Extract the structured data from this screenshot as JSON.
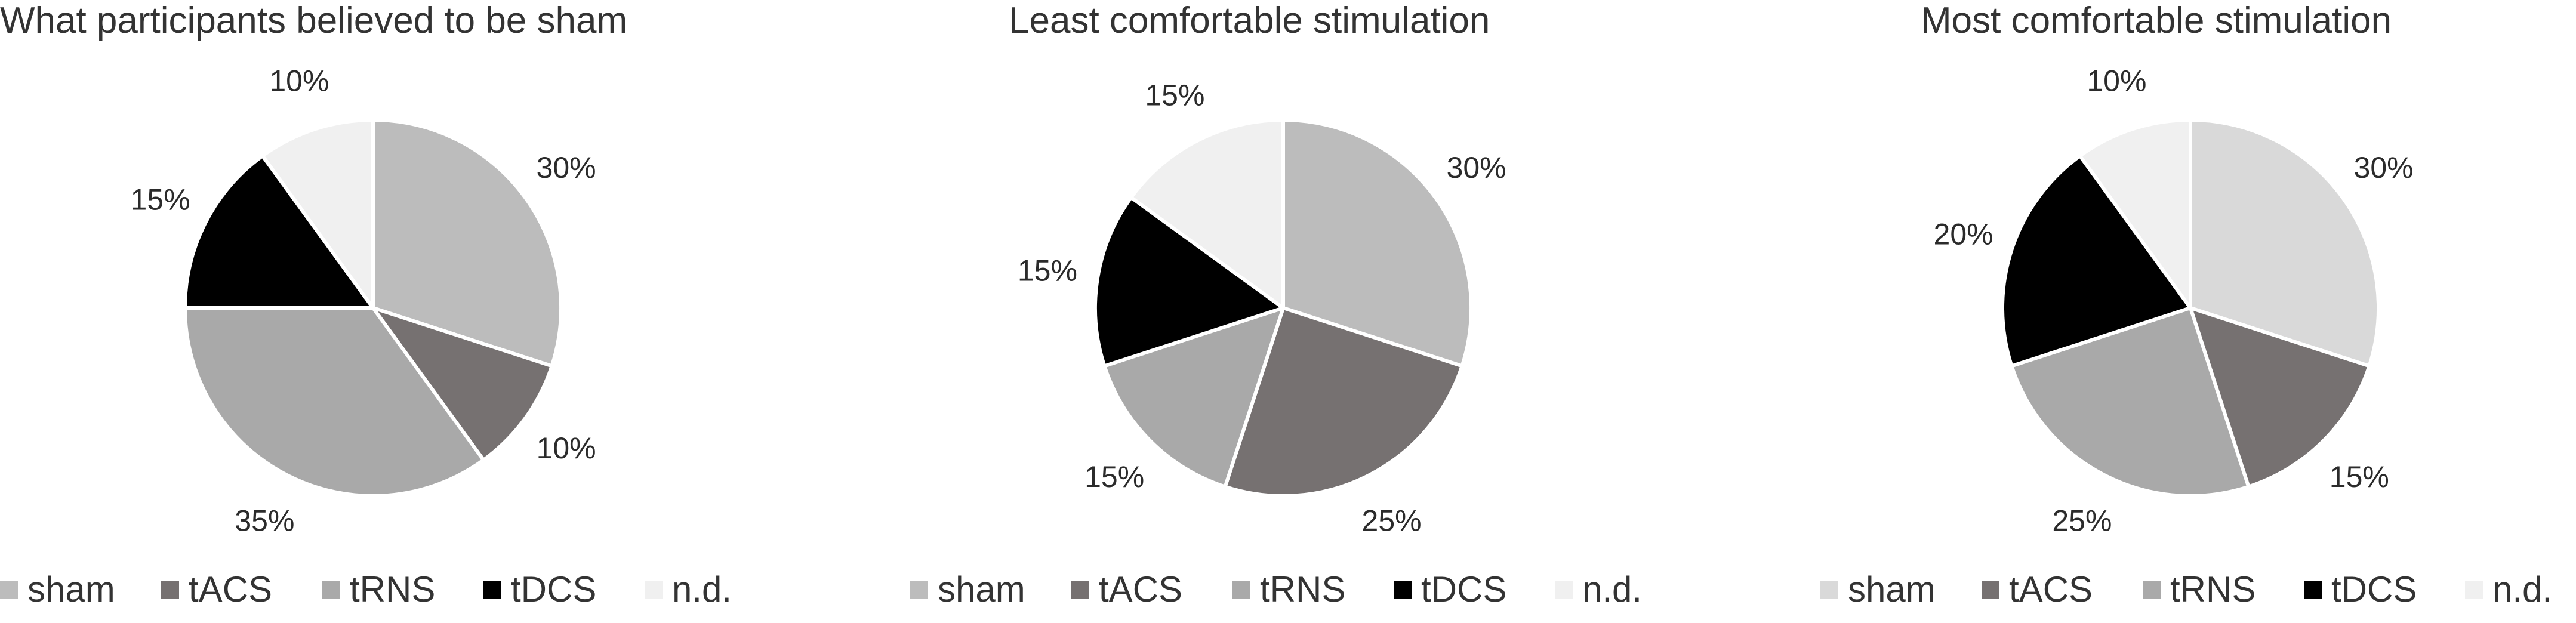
{
  "colors": {
    "sham": "#bcbcbc",
    "tACS": "#767171",
    "tRNS": "#a9a9a9",
    "tDCS": "#000000",
    "n.d.": "#f0f0f0",
    "slice_border": "#ffffff"
  },
  "chart_data": [
    {
      "type": "pie",
      "title": "What participants believed to be sham",
      "categories": [
        "sham",
        "tACS",
        "tRNS",
        "tDCS",
        "n.d."
      ],
      "values": [
        30,
        10,
        35,
        15,
        10
      ],
      "labels": [
        "30%",
        "10%",
        "35%",
        "15%",
        "10%"
      ],
      "legend": [
        "sham",
        "tACS",
        "tRNS",
        "tDCS",
        "n.d."
      ],
      "legend_position": "bottom",
      "start_angle_deg": 0,
      "direction": "clockwise"
    },
    {
      "type": "pie",
      "title": "Least comfortable stimulation",
      "categories": [
        "sham",
        "tACS",
        "tRNS",
        "tDCS",
        "n.d."
      ],
      "values": [
        30,
        25,
        15,
        15,
        15
      ],
      "labels": [
        "30%",
        "25%",
        "15%",
        "15%",
        "15%"
      ],
      "legend": [
        "sham",
        "tACS",
        "tRNS",
        "tDCS",
        "n.d."
      ],
      "legend_position": "bottom",
      "start_angle_deg": 0,
      "direction": "clockwise"
    },
    {
      "type": "pie",
      "title": "Most comfortable stimulation",
      "categories": [
        "sham",
        "tACS",
        "tRNS",
        "tDCS",
        "n.d."
      ],
      "values": [
        30,
        15,
        25,
        20,
        10
      ],
      "labels": [
        "30%",
        "15%",
        "25%",
        "20%",
        "10%"
      ],
      "legend": [
        "sham",
        "tACS",
        "tRNS",
        "tDCS",
        "n.d."
      ],
      "legend_position": "bottom",
      "start_angle_deg": 0,
      "direction": "clockwise",
      "colors_override": {
        "sham": "#d9d9d9"
      }
    }
  ]
}
